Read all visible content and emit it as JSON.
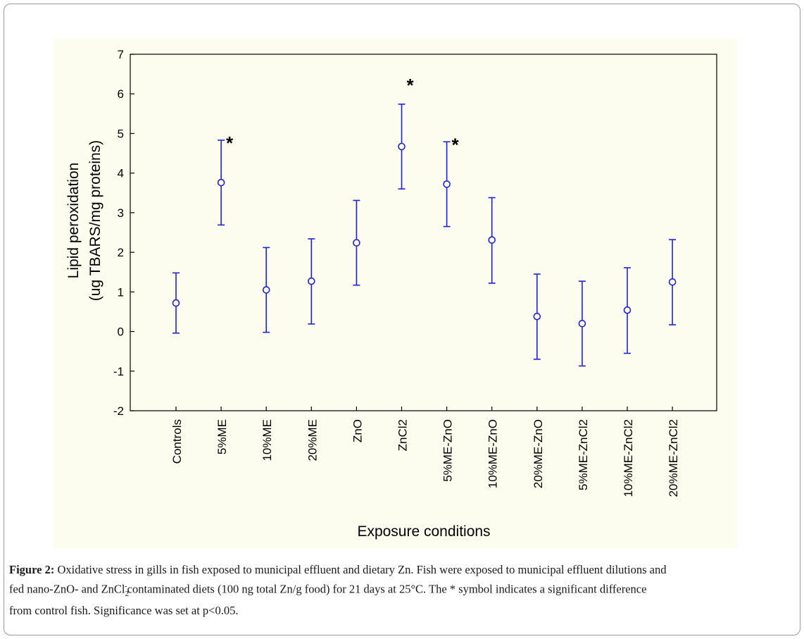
{
  "chart_data": {
    "type": "scatter",
    "error_bars": true,
    "xlabel": "Exposure conditions",
    "ylabel_line1": "Lipid peroxidation",
    "ylabel_line2": "(ug TBARS/mg proteins)",
    "ylim": [
      -2,
      7
    ],
    "yticks": [
      "-2",
      "-1",
      "0",
      "1",
      "2",
      "3",
      "4",
      "5",
      "6",
      "7"
    ],
    "categories": [
      "Controls",
      "5%ME",
      "10%ME",
      "20%ME",
      "ZnO",
      "ZnCl2",
      "5%ME-ZnO",
      "10%ME-ZnO",
      "20%ME-ZnO",
      "5%ME-ZnCl2",
      "10%ME-ZnCl2",
      "20%ME-ZnCl2"
    ],
    "means": [
      0.72,
      3.76,
      1.05,
      1.27,
      2.24,
      4.67,
      3.72,
      2.31,
      0.38,
      0.2,
      0.54,
      1.25
    ],
    "lower": [
      -0.04,
      2.69,
      -0.02,
      0.19,
      1.17,
      3.6,
      2.65,
      1.22,
      -0.7,
      -0.87,
      -0.55,
      0.17
    ],
    "upper": [
      1.48,
      4.83,
      2.12,
      2.34,
      3.31,
      5.74,
      4.79,
      3.38,
      1.45,
      1.27,
      1.61,
      2.32
    ],
    "significance_symbol": "*",
    "significant": [
      false,
      true,
      false,
      false,
      false,
      true,
      true,
      false,
      false,
      false,
      false,
      false
    ],
    "grid": false,
    "color": "#2020e0"
  },
  "caption": {
    "label": "Figure 2:",
    "line1": " Oxidative stress in gills in fish exposed to municipal effluent and dietary Zn. Fish were exposed to municipal effluent dilutions and",
    "line2_pre": "fed nano-ZnO- and ZnCl",
    "line2_sub": "2",
    "line2_sup": "-",
    "line2_post": "contaminated diets (100 ng total Zn/g food) for 21 days at 25°C. The * symbol indicates a significant difference",
    "line3": "from control fish. Significance was set at p<0.05."
  }
}
